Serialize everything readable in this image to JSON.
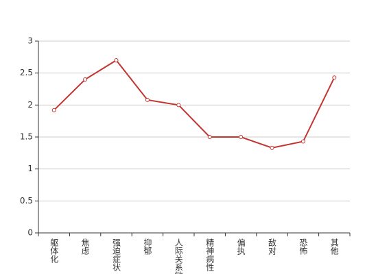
{
  "chart_data": {
    "type": "line",
    "categories": [
      "躯体化",
      "焦虑",
      "强迫症状",
      "抑郁",
      "人际关系敏感",
      "精神病性",
      "偏执",
      "敌对",
      "恐怖",
      "其他"
    ],
    "series": [
      {
        "color": "#c23531",
        "values": [
          1.92,
          2.4,
          2.7,
          2.08,
          2.0,
          1.5,
          1.5,
          1.33,
          1.43,
          2.43
        ]
      }
    ],
    "ylim": [
      0,
      3
    ],
    "yticks": [
      0,
      0.5,
      1,
      1.5,
      2,
      2.5,
      3
    ],
    "grid": true
  }
}
